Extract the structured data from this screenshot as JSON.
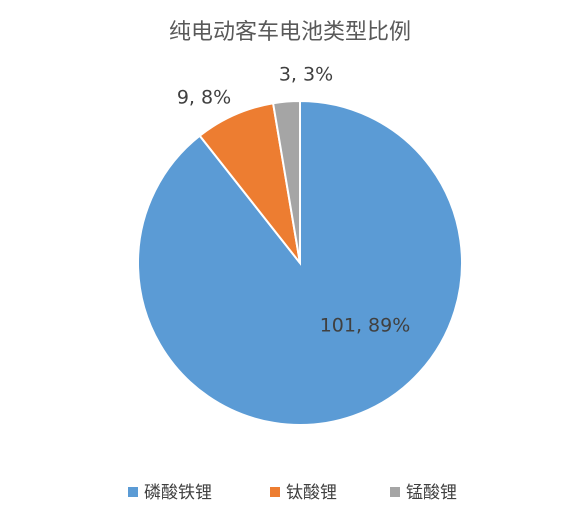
{
  "chart_data": {
    "type": "pie",
    "title": "纯电动客车电池类型比例",
    "categories": [
      "磷酸铁锂",
      "钛酸锂",
      "锰酸锂"
    ],
    "values": [
      101,
      9,
      3
    ],
    "value_labels": [
      "101, 89%",
      "9, 8%",
      "3, 3%"
    ],
    "colors": [
      "#5b9bd5",
      "#ed7d31",
      "#a5a5a5"
    ],
    "legend": "bottom"
  }
}
